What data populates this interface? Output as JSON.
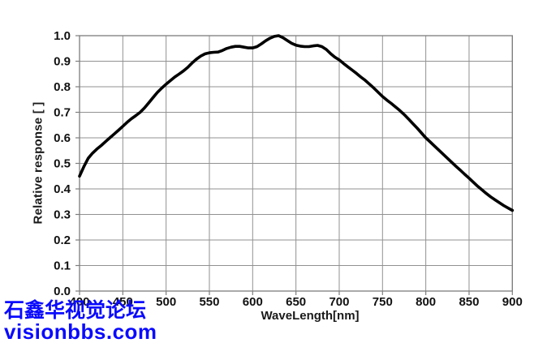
{
  "watermark": {
    "line1": "石鑫华视觉论坛",
    "line2": "visionbbs.com",
    "color": "#0a0aff"
  },
  "chart_data": {
    "type": "line",
    "title": "",
    "xlabel": "WaveLength[nm]",
    "ylabel": "Relative response [ ]",
    "xlim": [
      400,
      900
    ],
    "ylim": [
      0.0,
      1.0
    ],
    "x_ticks": [
      400,
      450,
      500,
      550,
      600,
      650,
      700,
      750,
      800,
      850,
      900
    ],
    "y_ticks": [
      "0.0",
      "0.1",
      "0.2",
      "0.3",
      "0.4",
      "0.5",
      "0.6",
      "0.7",
      "0.8",
      "0.9",
      "1.0"
    ],
    "grid": true,
    "legend": "none",
    "colors": {
      "line": "#000000",
      "grid": "#919191",
      "axis": "#7d7d7d",
      "tick_text": "#111111"
    },
    "series": [
      {
        "name": "relative-response",
        "points": [
          [
            400,
            0.45
          ],
          [
            405,
            0.487
          ],
          [
            410,
            0.52
          ],
          [
            415,
            0.54
          ],
          [
            420,
            0.556
          ],
          [
            425,
            0.57
          ],
          [
            430,
            0.585
          ],
          [
            435,
            0.6
          ],
          [
            440,
            0.615
          ],
          [
            445,
            0.63
          ],
          [
            450,
            0.645
          ],
          [
            455,
            0.661
          ],
          [
            460,
            0.675
          ],
          [
            465,
            0.687
          ],
          [
            470,
            0.7
          ],
          [
            475,
            0.717
          ],
          [
            480,
            0.737
          ],
          [
            485,
            0.758
          ],
          [
            490,
            0.778
          ],
          [
            495,
            0.795
          ],
          [
            500,
            0.81
          ],
          [
            505,
            0.824
          ],
          [
            510,
            0.838
          ],
          [
            515,
            0.85
          ],
          [
            520,
            0.862
          ],
          [
            525,
            0.876
          ],
          [
            530,
            0.893
          ],
          [
            535,
            0.908
          ],
          [
            540,
            0.92
          ],
          [
            545,
            0.929
          ],
          [
            550,
            0.933
          ],
          [
            555,
            0.935
          ],
          [
            560,
            0.936
          ],
          [
            565,
            0.942
          ],
          [
            570,
            0.95
          ],
          [
            575,
            0.955
          ],
          [
            580,
            0.958
          ],
          [
            585,
            0.958
          ],
          [
            590,
            0.955
          ],
          [
            595,
            0.952
          ],
          [
            600,
            0.952
          ],
          [
            605,
            0.957
          ],
          [
            610,
            0.968
          ],
          [
            615,
            0.98
          ],
          [
            620,
            0.99
          ],
          [
            625,
            0.997
          ],
          [
            630,
            1.0
          ],
          [
            635,
            0.992
          ],
          [
            640,
            0.981
          ],
          [
            645,
            0.97
          ],
          [
            650,
            0.963
          ],
          [
            655,
            0.959
          ],
          [
            660,
            0.957
          ],
          [
            665,
            0.957
          ],
          [
            670,
            0.96
          ],
          [
            675,
            0.962
          ],
          [
            680,
            0.957
          ],
          [
            685,
            0.946
          ],
          [
            690,
            0.93
          ],
          [
            695,
            0.916
          ],
          [
            700,
            0.905
          ],
          [
            705,
            0.891
          ],
          [
            710,
            0.878
          ],
          [
            715,
            0.865
          ],
          [
            720,
            0.852
          ],
          [
            725,
            0.838
          ],
          [
            730,
            0.825
          ],
          [
            735,
            0.81
          ],
          [
            740,
            0.795
          ],
          [
            745,
            0.778
          ],
          [
            750,
            0.762
          ],
          [
            755,
            0.748
          ],
          [
            760,
            0.735
          ],
          [
            765,
            0.721
          ],
          [
            770,
            0.707
          ],
          [
            775,
            0.691
          ],
          [
            780,
            0.674
          ],
          [
            785,
            0.656
          ],
          [
            790,
            0.638
          ],
          [
            795,
            0.619
          ],
          [
            800,
            0.6
          ],
          [
            805,
            0.584
          ],
          [
            810,
            0.568
          ],
          [
            815,
            0.552
          ],
          [
            820,
            0.536
          ],
          [
            825,
            0.52
          ],
          [
            830,
            0.504
          ],
          [
            835,
            0.488
          ],
          [
            840,
            0.473
          ],
          [
            845,
            0.457
          ],
          [
            850,
            0.442
          ],
          [
            855,
            0.426
          ],
          [
            860,
            0.41
          ],
          [
            865,
            0.396
          ],
          [
            870,
            0.382
          ],
          [
            875,
            0.369
          ],
          [
            880,
            0.357
          ],
          [
            885,
            0.346
          ],
          [
            890,
            0.335
          ],
          [
            895,
            0.325
          ],
          [
            900,
            0.316
          ]
        ]
      }
    ]
  }
}
